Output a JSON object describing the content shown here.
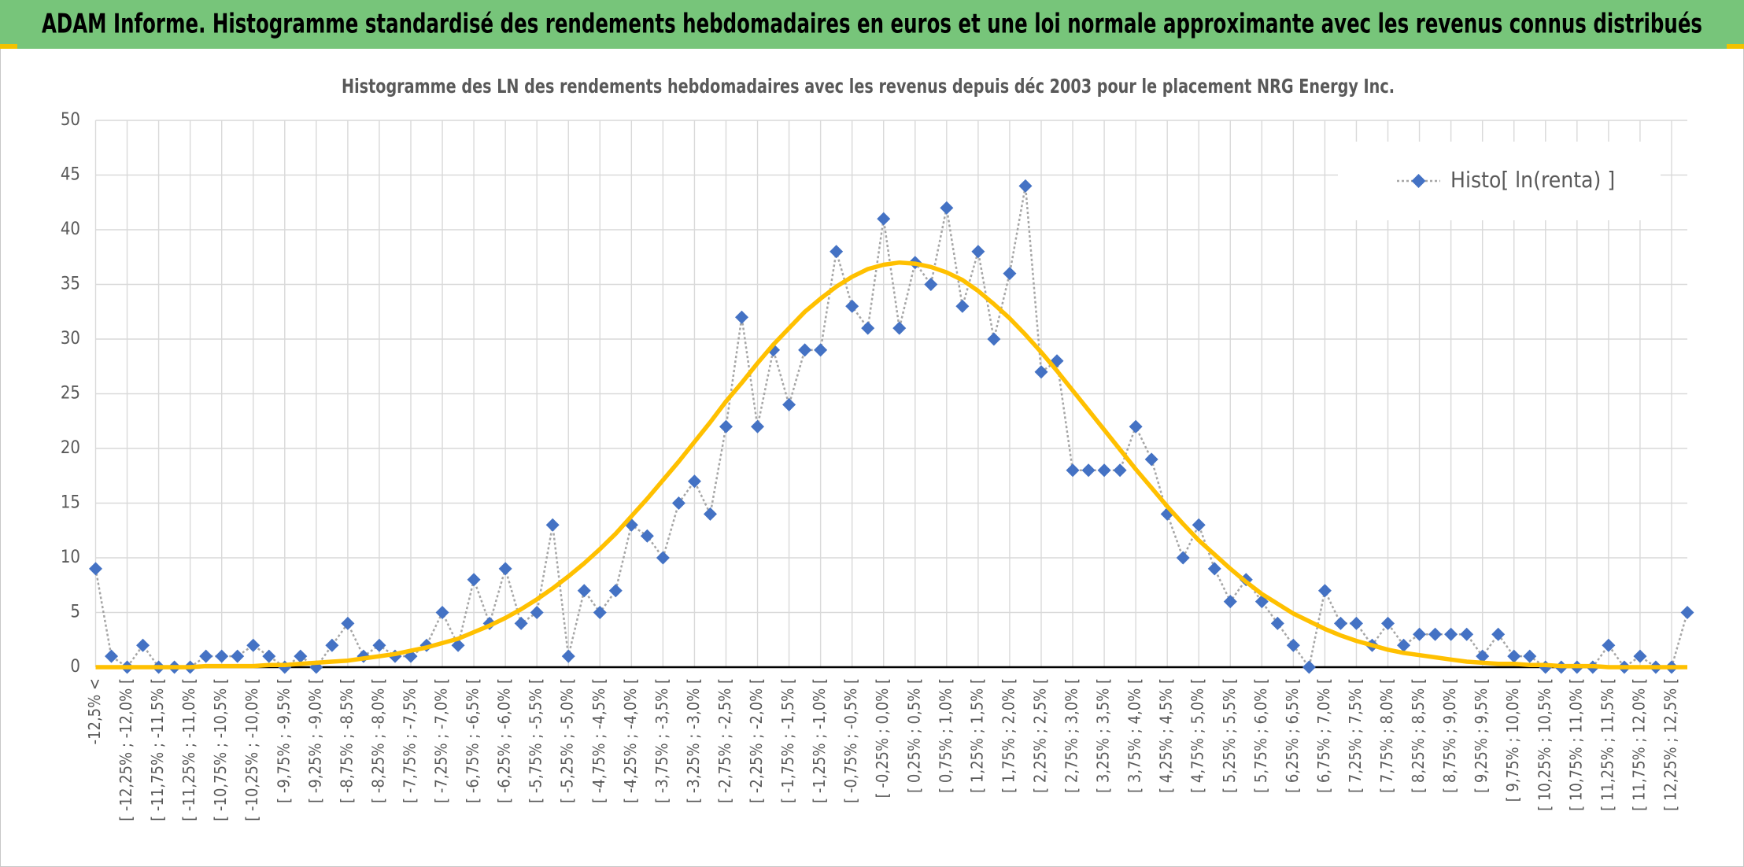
{
  "header": {
    "title": "ADAM Informe. Histogramme standardisé des rendements hebdomadaires en euros et une loi normale approximante avec les revenus connus distribués"
  },
  "chart_data": {
    "type": "line",
    "title": "Histogramme des LN des rendements hebdomadaires avec les revenus depuis déc 2003 pour le placement NRG Energy Inc.",
    "categories": [
      "-12,5% <",
      null,
      "[ -12,25% ; -12,0% [",
      null,
      "[ -11,75% ; -11,5% [",
      null,
      "[ -11,25% ; -11,0% [",
      null,
      "[ -10,75% ; -10,5% [",
      null,
      "[ -10,25% ; -10,0% [",
      null,
      "[ -9,75% ; -9,5% [",
      null,
      "[ -9,25% ; -9,0% [",
      null,
      "[ -8,75% ; -8,5% [",
      null,
      "[ -8,25% ; -8,0% [",
      null,
      "[ -7,75% ; -7,5% [",
      null,
      "[ -7,25% ; -7,0% [",
      null,
      "[ -6,75% ; -6,5% [",
      null,
      "[ -6,25% ; -6,0% [",
      null,
      "[ -5,75% ; -5,5% [",
      null,
      "[ -5,25% ; -5,0% [",
      null,
      "[ -4,75% ; -4,5% [",
      null,
      "[ -4,25% ; -4,0% [",
      null,
      "[ -3,75% ; -3,5% [",
      null,
      "[ -3,25% ; -3,0% [",
      null,
      "[ -2,75% ; -2,5% [",
      null,
      "[ -2,25% ; -2,0% [",
      null,
      "[ -1,75% ; -1,5% [",
      null,
      "[ -1,25% ; -1,0% [",
      null,
      "[ -0,75% ; -0,5% [",
      null,
      "[ -0,25% ; 0,0% [",
      null,
      "[ 0,25% ; 0,5% [",
      null,
      "[ 0,75% ; 1,0% [",
      null,
      "[ 1,25% ; 1,5% [",
      null,
      "[ 1,75% ; 2,0% [",
      null,
      "[ 2,25% ; 2,5% [",
      null,
      "[ 2,75% ; 3,0% [",
      null,
      "[ 3,25% ; 3,5% [",
      null,
      "[ 3,75% ; 4,0% [",
      null,
      "[ 4,25% ; 4,5% [",
      null,
      "[ 4,75% ; 5,0% [",
      null,
      "[ 5,25% ; 5,5% [",
      null,
      "[ 5,75% ; 6,0% [",
      null,
      "[ 6,25% ; 6,5% [",
      null,
      "[ 6,75% ; 7,0% [",
      null,
      "[ 7,25% ; 7,5% [",
      null,
      "[ 7,75% ; 8,0% [",
      null,
      "[ 8,25% ; 8,5% [",
      null,
      "[ 8,75% ; 9,0% [",
      null,
      "[ 9,25% ; 9,5% [",
      null,
      "[ 9,75% ; 10,0% [",
      null,
      "[ 10,25% ; 10,5% [",
      null,
      "[ 10,75% ; 11,0% [",
      null,
      "[ 11,25% ; 11,5% [",
      null,
      "[ 11,75% ; 12,0% [",
      null,
      "[ 12,25% ; 12,5% [",
      null
    ],
    "series": [
      {
        "name": "Histo[ ln(renta) ]",
        "color": "#4472c4",
        "line_color": "#a6a6a6",
        "values": [
          9,
          1,
          0,
          2,
          0,
          0,
          0,
          1,
          1,
          1,
          2,
          1,
          0,
          1,
          0,
          2,
          4,
          1,
          2,
          1,
          1,
          2,
          5,
          2,
          8,
          4,
          9,
          4,
          5,
          13,
          1,
          7,
          5,
          7,
          13,
          12,
          10,
          15,
          17,
          14,
          22,
          32,
          22,
          29,
          24,
          29,
          29,
          38,
          33,
          31,
          41,
          31,
          37,
          35,
          42,
          33,
          38,
          30,
          36,
          44,
          27,
          28,
          18,
          18,
          18,
          18,
          22,
          19,
          14,
          10,
          13,
          9,
          6,
          8,
          6,
          4,
          2,
          0,
          7,
          4,
          4,
          2,
          4,
          2,
          3,
          3,
          3,
          3,
          1,
          3,
          1,
          1,
          0,
          0,
          0,
          0,
          2,
          0,
          1,
          0,
          0,
          5
        ]
      },
      {
        "color": "#ffc000",
        "values": [
          0.0,
          0.0,
          0.0,
          0.0,
          0.0,
          0.0,
          0.0,
          0.1,
          0.1,
          0.1,
          0.1,
          0.2,
          0.2,
          0.3,
          0.4,
          0.5,
          0.6,
          0.8,
          1.0,
          1.2,
          1.5,
          1.8,
          2.2,
          2.6,
          3.2,
          3.8,
          4.5,
          5.3,
          6.2,
          7.2,
          8.3,
          9.5,
          10.8,
          12.2,
          13.8,
          15.4,
          17.1,
          18.8,
          20.6,
          22.4,
          24.3,
          26.0,
          27.8,
          29.5,
          31.0,
          32.5,
          33.7,
          34.8,
          35.7,
          36.4,
          36.8,
          37.0,
          36.9,
          36.6,
          36.1,
          35.4,
          34.4,
          33.2,
          31.9,
          30.4,
          28.8,
          27.1,
          25.3,
          23.5,
          21.7,
          19.9,
          18.1,
          16.4,
          14.7,
          13.1,
          11.6,
          10.3,
          9.0,
          7.8,
          6.7,
          5.8,
          4.9,
          4.2,
          3.5,
          2.9,
          2.4,
          2.0,
          1.6,
          1.3,
          1.1,
          0.9,
          0.7,
          0.5,
          0.4,
          0.3,
          0.3,
          0.2,
          0.2,
          0.1,
          0.1,
          0.1,
          0.0,
          0.0,
          0.0,
          0.0,
          0.0,
          0.0
        ]
      }
    ],
    "ylim": [
      0,
      50
    ],
    "yticks": [
      0,
      5,
      10,
      15,
      20,
      25,
      30,
      35,
      40,
      45,
      50
    ],
    "grid": true,
    "legend": "upper right"
  }
}
